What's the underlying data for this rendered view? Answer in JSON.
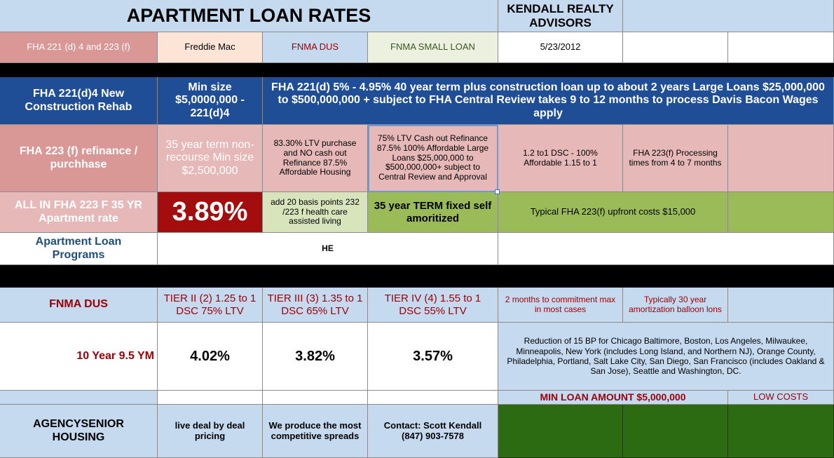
{
  "header": {
    "title": "APARTMENT LOAN RATES",
    "company": "KENDALL REALTY ADVISORS"
  },
  "programs_row": {
    "fha": "FHA 221 (d) 4 and 223 (f)",
    "freddie": "Freddie Mac",
    "fnma_dus": "FNMA DUS",
    "fnma_small": "FNMA SMALL LOAN",
    "date": "5/23/2012"
  },
  "fha221": {
    "label": "FHA 221(d)4 New Construction Rehab",
    "min_size": "Min size $5,0000,000 - 221(d)4",
    "description": "FHA 221(d) 5% - 4.95% 40 year term plus construction loan up to about 2 years Large Loans $25,000,000 to $500,000,000 + subject to FHA Central Review takes 9 to 12 months to process Davis Bacon Wages apply"
  },
  "fha223": {
    "label": "FHA 223 (f) refinance / purchhase",
    "term": "35 year term non-recourse Min size $2,500,000",
    "ltv": "83.30% LTV purchase and NO cash out Refinance 87.5% Affordable Housing",
    "cash_out": "75% LTV Cash out Refinance 87.5% 100% Affordable Large Loans $25,000,000 to $500,000,000+ subject to Central Review and Approval",
    "dsc": "1.2 to1 DSC - 100% Affordable 1.15 to 1",
    "processing": "FHA 223(f) Processing times from 4 to 7 months"
  },
  "all_in": {
    "label": "ALL IN FHA 223 F 35 YR Apartment rate",
    "rate": "3.89%",
    "basis_points": "add 20 basis points 232 /223 f health care assisted living",
    "term_note": "35 year TERM fixed self amoritized",
    "upfront": "Typical FHA 223(f) upfront costs $15,000"
  },
  "programs_note": {
    "label": "Apartment Loan Programs",
    "he": "HE"
  },
  "fnma": {
    "label": "FNMA DUS",
    "tier2": "TIER II (2) 1.25 to 1 DSC 75% LTV",
    "tier3": "TIER III (3) 1.35 to 1 DSC 65% LTV",
    "tier4": "TIER IV (4) 1.55 to 1 DSC 55% LTV",
    "commitment": "2 months to commitment max in most cases",
    "amortization": "Typically 30 year amortization balloon lons"
  },
  "ten_year": {
    "label": "10 Year 9.5 YM",
    "rate2": "4.02%",
    "rate3": "3.82%",
    "rate4": "3.57%",
    "reduction": "Reduction of 15 BP for Chicago Baltimore, Boston, Los Angeles, Milwaukee, Minneapolis, New York (includes Long Island, and Northern NJ), Orange County, Philadelphia, Portland, Salt Lake City, San Diego, San Francisco (includes Oakland & San Jose), Seattle and Washington, DC."
  },
  "min_row": {
    "min_loan": "MIN LOAN AMOUNT $5,000,000",
    "low_costs": "LOW COSTS"
  },
  "agency": {
    "label": "AGENCYSENIOR HOUSING",
    "live": "live deal by deal pricing",
    "produce": "We produce the most competitive spreads",
    "contact": "Contact: Scott Kendall (847) 903-7578"
  }
}
